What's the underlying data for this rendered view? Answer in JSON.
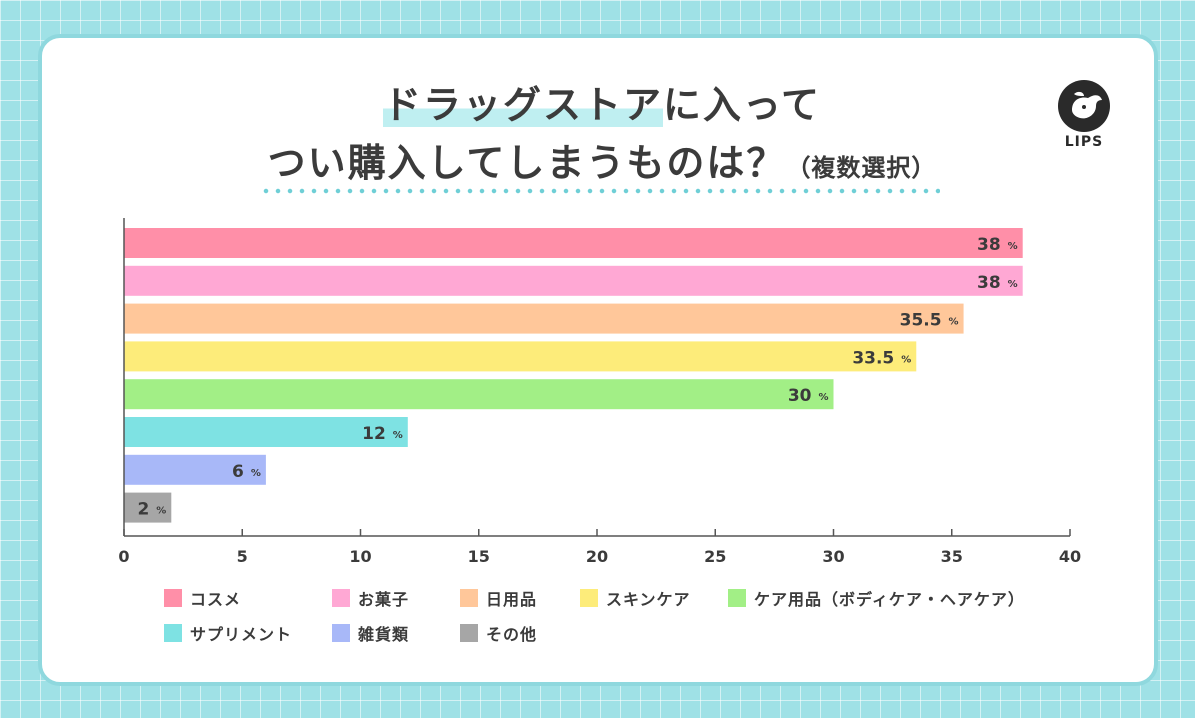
{
  "title": {
    "line1_highlight": "ドラッグストア",
    "line1_rest": "に入って",
    "line2": "つい購入してしまうものは？",
    "line2_sub": "（複数選択）"
  },
  "logo": {
    "text": "LIPS"
  },
  "chart_data": {
    "type": "bar",
    "orientation": "horizontal",
    "categories": [
      "コスメ",
      "お菓子",
      "日用品",
      "スキンケア",
      "ケア用品（ボディケア・ヘアケア）",
      "サプリメント",
      "雑貨類",
      "その他"
    ],
    "values": [
      38,
      38,
      35.5,
      33.5,
      30,
      12,
      6,
      2
    ],
    "value_labels": [
      "38",
      "38",
      "35.5",
      "33.5",
      "30",
      "12",
      "6",
      "2"
    ],
    "unit": "%",
    "colors": [
      "#ff8fa8",
      "#ffa8d4",
      "#ffc79a",
      "#fdec7a",
      "#a2ef86",
      "#7ee2e3",
      "#a8b8f8",
      "#a6a6a6"
    ],
    "xlim": [
      0,
      40
    ],
    "xticks": [
      "0",
      "5",
      "10",
      "15",
      "20",
      "25",
      "30",
      "35",
      "40"
    ],
    "legend_position": "bottom",
    "grid": false
  }
}
